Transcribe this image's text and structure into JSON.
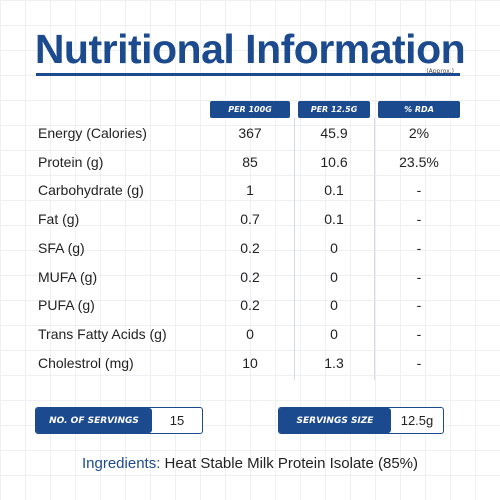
{
  "header": {
    "title": "Nutritional Information",
    "note": "(Approx.)"
  },
  "table": {
    "columns": [
      "PER 100G",
      "PER 12.5G",
      "% RDA"
    ],
    "rows": [
      [
        "Energy (Calories)",
        "367",
        "45.9",
        "2%"
      ],
      [
        "Protein (g)",
        "85",
        "10.6",
        "23.5%"
      ],
      [
        "Carbohydrate (g)",
        "1",
        "0.1",
        "-"
      ],
      [
        "Fat (g)",
        "0.7",
        "0.1",
        "-"
      ],
      [
        "SFA (g)",
        "0.2",
        "0",
        "-"
      ],
      [
        "MUFA (g)",
        "0.2",
        "0",
        "-"
      ],
      [
        "PUFA (g)",
        "0.2",
        "0",
        "-"
      ],
      [
        "Trans Fatty Acids (g)",
        "0",
        "0",
        "-"
      ],
      [
        "Cholestrol (mg)",
        "10",
        "1.3",
        "-"
      ]
    ]
  },
  "servings": {
    "count_label": "NO. OF SERVINGS",
    "count": "15",
    "size_label": "SERVINGS SIZE",
    "size": "12.5g"
  },
  "ingredients": {
    "label": "Ingredients:",
    "text": "Heat Stable Milk Protein Isolate (85%)"
  }
}
